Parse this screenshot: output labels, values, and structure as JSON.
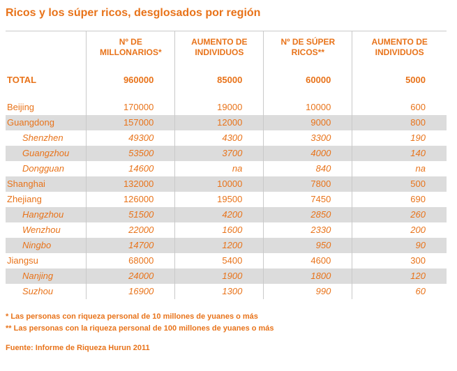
{
  "title": "Ricos y los súper ricos, desglosados por región",
  "colors": {
    "accent": "#E8731A",
    "row_shade": "#DCDCDC",
    "grid_line": "#C9C9C9"
  },
  "chart_data": {
    "type": "table",
    "title": "Ricos y los súper ricos, desglosados por región",
    "columns": [
      "",
      "Nº DE MILLONARIOS*",
      "AUMENTO DE INDIVIDUOS",
      "Nº DE SÚPER RICOS**",
      "AUMENTO DE INDIVIDUOS"
    ],
    "rows": [
      {
        "label": "TOTAL",
        "type": "total",
        "shaded": false,
        "values": [
          "960000",
          "85000",
          "60000",
          "5000"
        ]
      },
      {
        "label": "Beijing",
        "type": "region",
        "shaded": false,
        "values": [
          "170000",
          "19000",
          "10000",
          "600"
        ]
      },
      {
        "label": "Guangdong",
        "type": "region",
        "shaded": true,
        "values": [
          "157000",
          "12000",
          "9000",
          "800"
        ]
      },
      {
        "label": "Shenzhen",
        "type": "city",
        "shaded": false,
        "values": [
          "49300",
          "4300",
          "3300",
          "190"
        ]
      },
      {
        "label": "Guangzhou",
        "type": "city",
        "shaded": true,
        "values": [
          "53500",
          "3700",
          "4000",
          "140"
        ]
      },
      {
        "label": "Dongguan",
        "type": "city",
        "shaded": false,
        "values": [
          "14600",
          "na",
          "840",
          "na"
        ]
      },
      {
        "label": "Shanghai",
        "type": "region",
        "shaded": true,
        "values": [
          "132000",
          "10000",
          "7800",
          "500"
        ]
      },
      {
        "label": "Zhejiang",
        "type": "region",
        "shaded": false,
        "values": [
          "126000",
          "19500",
          "7450",
          "690"
        ]
      },
      {
        "label": "Hangzhou",
        "type": "city",
        "shaded": true,
        "values": [
          "51500",
          "4200",
          "2850",
          "260"
        ]
      },
      {
        "label": "Wenzhou",
        "type": "city",
        "shaded": false,
        "values": [
          "22000",
          "1600",
          "2330",
          "200"
        ]
      },
      {
        "label": "Ningbo",
        "type": "city",
        "shaded": true,
        "values": [
          "14700",
          "1200",
          "950",
          "90"
        ]
      },
      {
        "label": "Jiangsu",
        "type": "region",
        "shaded": false,
        "values": [
          "68000",
          "5400",
          "4600",
          "300"
        ]
      },
      {
        "label": "Nanjing",
        "type": "city",
        "shaded": true,
        "values": [
          "24000",
          "1900",
          "1800",
          "120"
        ]
      },
      {
        "label": "Suzhou",
        "type": "city",
        "shaded": false,
        "values": [
          "16900",
          "1300",
          "990",
          "60"
        ]
      }
    ]
  },
  "footnotes": [
    "* Las personas con riqueza personal de 10 millones de yuanes o más",
    "** Las personas con la riqueza personal de 100 millones de yuanes o más"
  ],
  "source": "Fuente: Informe de Riqueza Hurun 2011"
}
